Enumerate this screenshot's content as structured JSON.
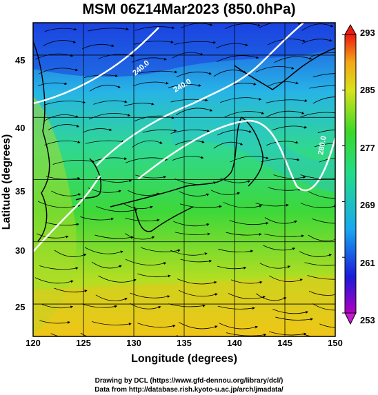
{
  "title": "MSM 06Z14Mar2023 (850.0hPa)",
  "xlabel": "Longitude (degrees)",
  "ylabel": "Latitude  (degrees)",
  "x_ticks": [
    "120",
    "125",
    "130",
    "135",
    "140",
    "145",
    "150"
  ],
  "y_ticks": [
    "45",
    "40",
    "35",
    "30",
    "25"
  ],
  "colorbar": {
    "ticks": [
      "293",
      "285",
      "277",
      "269",
      "261",
      "253"
    ],
    "min": 253,
    "max": 293
  },
  "contour_labels": [
    "240.0",
    "240.0",
    "280.0"
  ],
  "credits": {
    "line1": "Drawing by DCL (https://www.gfd-dennou.org/library/dcl/)",
    "line2": "Data from http://database.rish.kyoto-u.ac.jp/arch/jmadata/"
  },
  "map": {
    "lon_range": [
      120,
      150
    ],
    "lat_range": [
      22.4,
      47.6
    ],
    "colors": {
      "cold": "#1b3fe0",
      "cyan": "#22c8d8",
      "green": "#2ed640",
      "yellow": "#d8e21a",
      "orange": "#f2c418",
      "coast": "#000000",
      "contour": "#ffffff"
    }
  }
}
